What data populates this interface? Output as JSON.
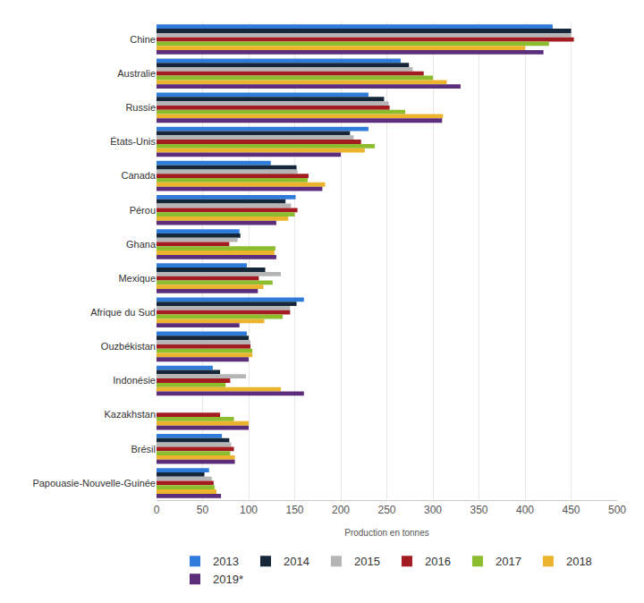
{
  "chart_data": {
    "type": "bar",
    "orientation": "horizontal",
    "xlabel": "Production en tonnes",
    "categories": [
      "Chine",
      "Australie",
      "Russie",
      "États-Unis",
      "Canada",
      "Pérou",
      "Ghana",
      "Mexique",
      "Afrique du Sud",
      "Ouzbékistan",
      "Indonésie",
      "Kazakhstan",
      "Brésil",
      "Papouasie-Nouvelle-Guinée"
    ],
    "series": [
      {
        "name": "2013",
        "color": "#2f7bd9",
        "values": [
          430,
          265,
          230,
          230,
          124,
          151,
          90,
          98,
          160,
          98,
          61,
          null,
          71,
          57
        ]
      },
      {
        "name": "2014",
        "color": "#16273a",
        "values": [
          450,
          274,
          247,
          210,
          152,
          140,
          91,
          118,
          152,
          100,
          69,
          null,
          79,
          52
        ]
      },
      {
        "name": "2015",
        "color": "#b5b5b5",
        "values": [
          450,
          278,
          252,
          214,
          153,
          146,
          88,
          135,
          145,
          102,
          97,
          null,
          81,
          60
        ]
      },
      {
        "name": "2016",
        "color": "#a31c22",
        "values": [
          453,
          290,
          253,
          222,
          165,
          153,
          79,
          111,
          145,
          102,
          80,
          69,
          84,
          62
        ]
      },
      {
        "name": "2017",
        "color": "#8cbd2f",
        "values": [
          426,
          300,
          270,
          237,
          164,
          150,
          129,
          126,
          137,
          104,
          75,
          84,
          80,
          63
        ]
      },
      {
        "name": "2018",
        "color": "#ecb42c",
        "values": [
          400,
          315,
          311,
          226,
          183,
          143,
          128,
          116,
          117,
          104,
          135,
          100,
          85,
          65
        ]
      },
      {
        "name": "2019*",
        "color": "#5c2d7a",
        "values": [
          420,
          330,
          310,
          200,
          180,
          130,
          130,
          110,
          90,
          100,
          160,
          100,
          85,
          70
        ]
      }
    ],
    "xlim": [
      0,
      500
    ],
    "xticks": [
      0,
      50,
      100,
      150,
      200,
      250,
      300,
      350,
      400,
      450,
      500
    ],
    "grid": true,
    "legend": "bottom"
  }
}
